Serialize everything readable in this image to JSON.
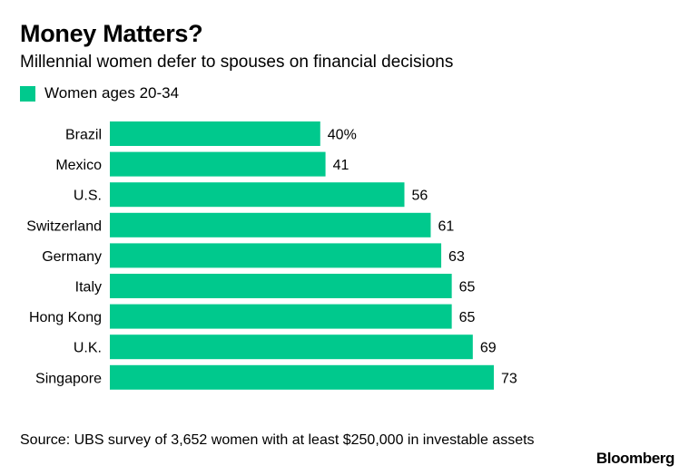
{
  "title": "Money Matters?",
  "subtitle": "Millennial women defer to spouses on financial decisions",
  "source": "Source: UBS survey of 3,652 women with at least $250,000 in investable assets",
  "brand": "Bloomberg",
  "chart_data": {
    "type": "bar",
    "orientation": "horizontal",
    "categories": [
      "Brazil",
      "Mexico",
      "U.S.",
      "Switzerland",
      "Germany",
      "Italy",
      "Hong Kong",
      "U.K.",
      "Singapore"
    ],
    "series": [
      {
        "name": "Women ages 20-34",
        "values": [
          40,
          41,
          56,
          61,
          63,
          65,
          65,
          69,
          73
        ],
        "color": "#00c98d"
      }
    ],
    "data_labels": [
      "40%",
      "41",
      "56",
      "61",
      "63",
      "65",
      "65",
      "69",
      "73"
    ],
    "xlim": [
      0,
      73
    ],
    "grid": false,
    "legend_position": "top-left"
  }
}
